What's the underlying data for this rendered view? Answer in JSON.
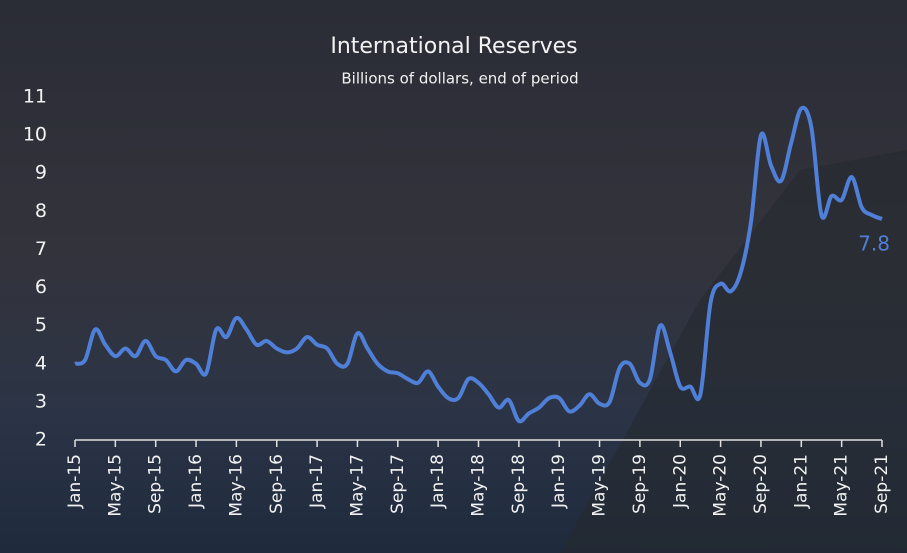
{
  "chart_data": {
    "type": "line",
    "title": "International Reserves",
    "subtitle": "Billions of dollars, end of period",
    "categories": [
      "Jan-15",
      null,
      null,
      null,
      "May-15",
      null,
      null,
      null,
      "Sep-15",
      null,
      null,
      null,
      "Jan-16",
      null,
      null,
      null,
      "May-16",
      null,
      null,
      null,
      "Sep-16",
      null,
      null,
      null,
      "Jan-17",
      null,
      null,
      null,
      "May-17",
      null,
      null,
      null,
      "Sep-17",
      null,
      null,
      null,
      "Jan-18",
      null,
      null,
      null,
      "May-18",
      null,
      null,
      null,
      "Sep-18",
      null,
      null,
      null,
      "Jan-19",
      null,
      null,
      null,
      "May-19",
      null,
      null,
      null,
      "Sep-19",
      null,
      null,
      null,
      "Jan-20",
      null,
      null,
      null,
      "May-20",
      null,
      null,
      null,
      "Sep-20",
      null,
      null,
      null,
      "Jan-21",
      null,
      null,
      null,
      "May-21",
      null,
      null,
      null,
      "Sep-21"
    ],
    "series": [
      {
        "name": "International Reserves",
        "color": "#4f7fd6",
        "values": [
          4.0,
          4.1,
          4.9,
          4.5,
          4.2,
          4.4,
          4.2,
          4.6,
          4.2,
          4.1,
          3.8,
          4.1,
          4.0,
          3.75,
          4.9,
          4.7,
          5.2,
          4.9,
          4.5,
          4.6,
          4.4,
          4.3,
          4.4,
          4.7,
          4.5,
          4.4,
          4.0,
          4.0,
          4.8,
          4.4,
          4.0,
          3.8,
          3.75,
          3.6,
          3.5,
          3.8,
          3.4,
          3.1,
          3.1,
          3.6,
          3.5,
          3.2,
          2.85,
          3.05,
          2.5,
          2.7,
          2.85,
          3.1,
          3.1,
          2.75,
          2.9,
          3.2,
          2.95,
          3.0,
          3.9,
          4.0,
          3.5,
          3.6,
          5.0,
          4.3,
          3.4,
          3.4,
          3.2,
          5.6,
          6.1,
          5.9,
          6.4,
          7.7,
          10.0,
          9.2,
          8.8,
          9.8,
          10.7,
          10.2,
          7.9,
          8.4,
          8.3,
          8.9,
          8.1,
          7.9,
          7.8
        ]
      }
    ],
    "ylim": [
      2,
      11
    ],
    "yticks": [
      2,
      3,
      4,
      5,
      6,
      7,
      8,
      9,
      10,
      11
    ]
  }
}
